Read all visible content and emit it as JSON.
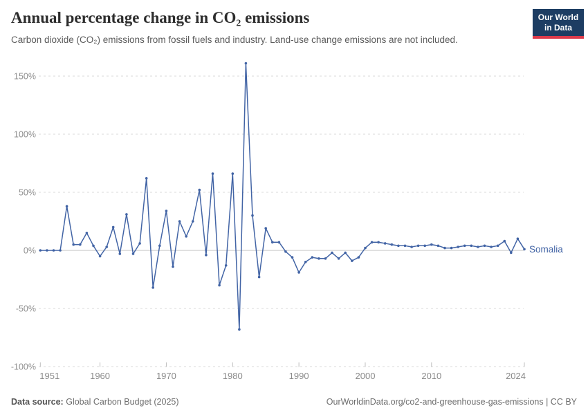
{
  "header": {
    "title": "Annual percentage change in CO₂ emissions",
    "subtitle": "Carbon dioxide (CO₂) emissions from fossil fuels and industry. Land-use change emissions are not included.",
    "logo": {
      "line1": "Our World",
      "line2": "in Data",
      "bg": "#1d3d63",
      "accent": "#dc3a4b"
    }
  },
  "chart_data": {
    "type": "line",
    "title": "Annual percentage change in CO₂ emissions",
    "entity_label": "Somalia",
    "line_color": "#4264a5",
    "grid": "horizontal dashed",
    "legend_position": "end-of-line label",
    "xlim": [
      1950,
      2025
    ],
    "ylim": [
      -100,
      165
    ],
    "xticks": [
      1951,
      1960,
      1970,
      1980,
      1990,
      2000,
      2010,
      2024
    ],
    "yticks": [
      -100,
      -50,
      0,
      50,
      100,
      150
    ],
    "ytick_labels": [
      "-100%",
      "-50%",
      "0%",
      "50%",
      "100%",
      "150%"
    ],
    "xlabel": "",
    "ylabel": "",
    "x": [
      1951,
      1952,
      1953,
      1954,
      1955,
      1956,
      1957,
      1958,
      1959,
      1960,
      1961,
      1962,
      1963,
      1964,
      1965,
      1966,
      1967,
      1968,
      1969,
      1970,
      1971,
      1972,
      1973,
      1974,
      1975,
      1976,
      1977,
      1978,
      1979,
      1980,
      1981,
      1982,
      1983,
      1984,
      1985,
      1986,
      1987,
      1988,
      1989,
      1990,
      1991,
      1992,
      1993,
      1994,
      1995,
      1996,
      1997,
      1998,
      1999,
      2000,
      2001,
      2002,
      2003,
      2004,
      2005,
      2006,
      2007,
      2008,
      2009,
      2010,
      2011,
      2012,
      2013,
      2014,
      2015,
      2016,
      2017,
      2018,
      2019,
      2020,
      2021,
      2022,
      2023,
      2024
    ],
    "series": [
      {
        "name": "Somalia",
        "values": [
          0,
          0,
          0,
          0,
          38,
          5,
          5,
          15,
          4,
          -5,
          3,
          20,
          -3,
          31,
          -3,
          6,
          62,
          -32,
          4,
          34,
          -14,
          25,
          12,
          25,
          52,
          -4,
          66,
          -30,
          -13,
          66,
          -68,
          161,
          30,
          -23,
          19,
          7,
          7,
          -1,
          -6,
          -19,
          -10,
          -6,
          -7,
          -7,
          -2,
          -7,
          -2,
          -9,
          -6,
          2,
          7,
          7,
          6,
          5,
          4,
          4,
          3,
          4,
          4,
          5,
          4,
          2,
          2,
          3,
          4,
          4,
          3,
          4,
          3,
          4,
          8,
          -2,
          10,
          1
        ]
      }
    ]
  },
  "footer": {
    "source_label": "Data source:",
    "source_value": "Global Carbon Budget (2025)",
    "right": "OurWorldinData.org/co2-and-greenhouse-gas-emissions | CC BY"
  }
}
